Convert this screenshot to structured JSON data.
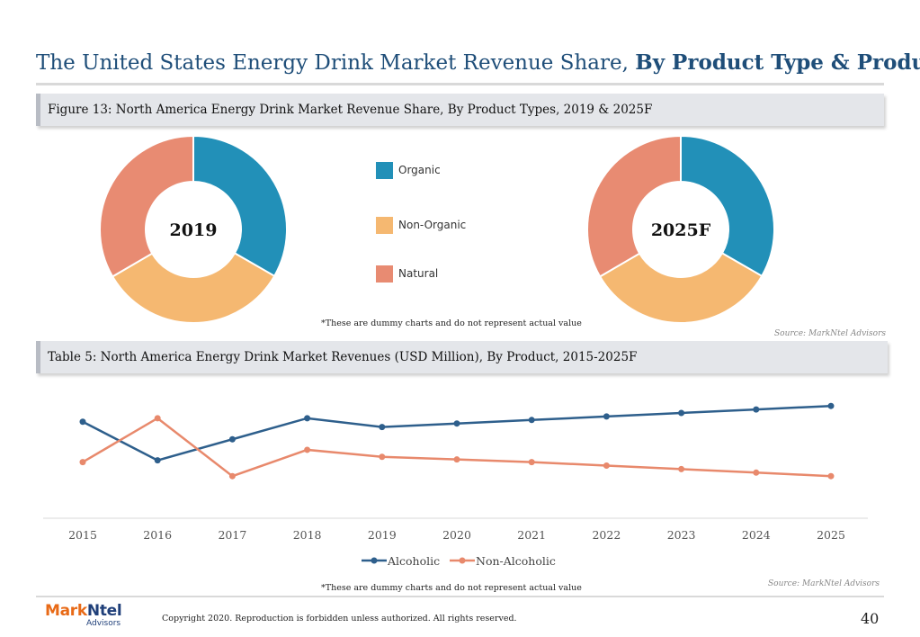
{
  "header": {
    "title_regular": "The United States Energy Drink Market Revenue Share,",
    "title_bold": "By Product Type & Product"
  },
  "figure13": {
    "caption": "Figure 13: North America Energy Drink Market Revenue Share, By Product Types, 2019 & 2025F",
    "note": "*These are dummy charts and do not represent actual value",
    "source": "Source: MarkNtel Advisors"
  },
  "table5": {
    "caption": "Table 5: North America Energy Drink Market Revenues (USD Million), By Product, 2015-2025F",
    "note": "*These are dummy charts and do not represent actual value",
    "source": "Source: MarkNtel Advisors"
  },
  "colors": {
    "organic": "#2290b8",
    "non_organic": "#f5b871",
    "natural": "#e88b72",
    "alcoholic": "#2e5f8c",
    "non_alcoholic": "#e8896c"
  },
  "chart_data": [
    {
      "type": "pie",
      "center_label": "2019",
      "categories": [
        "Organic",
        "Non-Organic",
        "Natural"
      ],
      "values": [
        33.3,
        33.3,
        33.4
      ],
      "unit": "%"
    },
    {
      "type": "pie",
      "center_label": "2025F",
      "categories": [
        "Organic",
        "Non-Organic",
        "Natural"
      ],
      "values": [
        33.3,
        33.3,
        33.4
      ],
      "unit": "%"
    },
    {
      "type": "line",
      "x": [
        "2015",
        "2016",
        "2017",
        "2018",
        "2019",
        "2020",
        "2021",
        "2022",
        "2023",
        "2024",
        "2025"
      ],
      "series": [
        {
          "name": "Alcoholic",
          "values": [
            5.5,
            3.3,
            4.5,
            5.7,
            5.2,
            5.4,
            5.6,
            5.8,
            6.0,
            6.2,
            6.4
          ]
        },
        {
          "name": "Non-Alcoholic",
          "values": [
            3.2,
            5.7,
            2.4,
            3.9,
            3.5,
            3.35,
            3.2,
            3.0,
            2.8,
            2.6,
            2.4
          ]
        }
      ],
      "ylim": [
        0,
        8
      ],
      "grid": false,
      "legend": "bottom"
    }
  ],
  "footer": {
    "logo_part1": "Mark",
    "logo_part2": "Ntel",
    "logo_sub": "Advisors",
    "copyright": "Copyright 2020. Reproduction is forbidden unless authorized. All rights reserved.",
    "page_number": "40"
  }
}
